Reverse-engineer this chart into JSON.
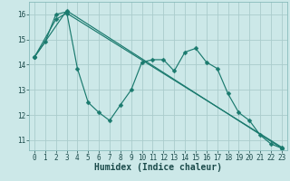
{
  "background_color": "#cce8e8",
  "grid_color": "#aacccc",
  "line_color": "#1a7a6e",
  "xlabel": "Humidex (Indice chaleur)",
  "xlim": [
    -0.5,
    23.5
  ],
  "ylim": [
    10.6,
    16.5
  ],
  "yticks": [
    11,
    12,
    13,
    14,
    15,
    16
  ],
  "xticks": [
    0,
    1,
    2,
    3,
    4,
    5,
    6,
    7,
    8,
    9,
    10,
    11,
    12,
    13,
    14,
    15,
    16,
    17,
    18,
    19,
    20,
    21,
    22,
    23
  ],
  "line1_x": [
    0,
    1,
    2,
    3,
    4,
    5,
    6,
    7,
    8,
    9,
    10,
    11,
    12,
    13,
    14,
    15,
    16,
    17,
    18,
    19,
    20,
    21,
    22,
    23
  ],
  "line1_y": [
    14.3,
    14.9,
    16.0,
    16.1,
    13.85,
    12.5,
    12.1,
    11.78,
    12.4,
    13.0,
    14.1,
    14.2,
    14.2,
    13.75,
    14.5,
    14.65,
    14.1,
    13.85,
    12.85,
    12.1,
    11.78,
    11.2,
    10.85,
    10.68
  ],
  "line2_x": [
    0,
    3,
    23
  ],
  "line2_y": [
    14.3,
    16.15,
    10.68
  ],
  "line3_x": [
    0,
    2,
    3,
    23
  ],
  "line3_y": [
    14.3,
    15.8,
    16.05,
    10.72
  ],
  "tick_fontsize": 5.5,
  "xlabel_fontsize": 7,
  "spine_color": "#88bbbb"
}
